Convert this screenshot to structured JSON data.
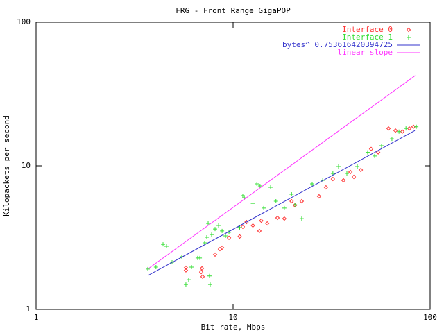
{
  "chart_data": {
    "type": "scatter",
    "title": "FRG - Front Range GigaPOP",
    "xlabel": "Bit rate, Mbps",
    "ylabel": "Kilopackets per second",
    "xscale": "log",
    "yscale": "log",
    "xlim": [
      1,
      100
    ],
    "ylim": [
      1,
      100
    ],
    "xticks": [
      1,
      10,
      100
    ],
    "yticks": [
      1,
      10,
      100
    ],
    "legend": "top right",
    "series": [
      {
        "name": "Interface 0",
        "color": "#ff3333",
        "style": "diamond",
        "x": [
          5.76,
          5.76,
          6.89,
          6.95,
          7.0,
          8.1,
          8.57,
          8.79,
          9.53,
          10.8,
          11.2,
          11.7,
          12.6,
          13.6,
          13.9,
          14.9,
          16.8,
          18.2,
          19.8,
          20.6,
          22.3,
          27.3,
          29.6,
          32.1,
          36.3,
          39.4,
          41.0,
          44.5,
          50.2,
          54.5,
          61.5,
          66.7,
          72.3,
          78.4,
          82.3
        ],
        "values": [
          1.95,
          1.87,
          1.82,
          1.93,
          1.69,
          2.41,
          2.63,
          2.69,
          3.15,
          3.22,
          3.76,
          4.06,
          3.84,
          3.52,
          4.15,
          3.97,
          4.34,
          4.29,
          5.67,
          5.31,
          5.67,
          6.13,
          7.08,
          8.09,
          7.92,
          9.05,
          8.37,
          9.35,
          13.1,
          12.4,
          18.2,
          17.6,
          17.3,
          18.2,
          18.7
        ]
      },
      {
        "name": "Interface 1",
        "color": "#33dd33",
        "style": "plus",
        "x": [
          3.69,
          4.06,
          4.41,
          4.59,
          4.9,
          5.49,
          5.76,
          5.95,
          6.15,
          6.61,
          6.78,
          7.17,
          7.35,
          7.47,
          7.78,
          8.1,
          8.44,
          8.79,
          9.15,
          9.53,
          10.8,
          11.2,
          11.4,
          12.6,
          13.2,
          13.7,
          14.3,
          15.5,
          16.5,
          18.2,
          19.8,
          20.6,
          22.3,
          25.2,
          28.5,
          32.1,
          34.3,
          37.8,
          42.7,
          48.2,
          52.3,
          56.7,
          64.0,
          69.5,
          75.4,
          85.1,
          7.65,
          7.59
        ],
        "values": [
          1.91,
          1.97,
          2.84,
          2.75,
          2.13,
          2.33,
          1.49,
          1.61,
          1.97,
          2.28,
          2.28,
          2.91,
          3.18,
          3.97,
          3.32,
          3.63,
          3.84,
          3.52,
          3.25,
          3.44,
          3.72,
          6.2,
          5.99,
          5.48,
          7.49,
          7.24,
          5.08,
          7.08,
          5.67,
          5.08,
          6.34,
          5.36,
          4.29,
          7.49,
          7.92,
          8.85,
          9.89,
          8.85,
          9.89,
          12.4,
          11.7,
          13.8,
          15.4,
          17.3,
          18.2,
          18.7,
          1.49,
          1.71
        ]
      },
      {
        "name": "bytes^ 0.753616420394725",
        "color": "#3333cc",
        "style": "line",
        "x": [
          3.69,
          83.7
        ],
        "values": [
          1.72,
          17.6
        ]
      },
      {
        "name": "linear slope",
        "color": "#ff33ff",
        "style": "line",
        "x": [
          3.69,
          84
        ],
        "values": [
          1.91,
          42.5
        ]
      }
    ]
  }
}
